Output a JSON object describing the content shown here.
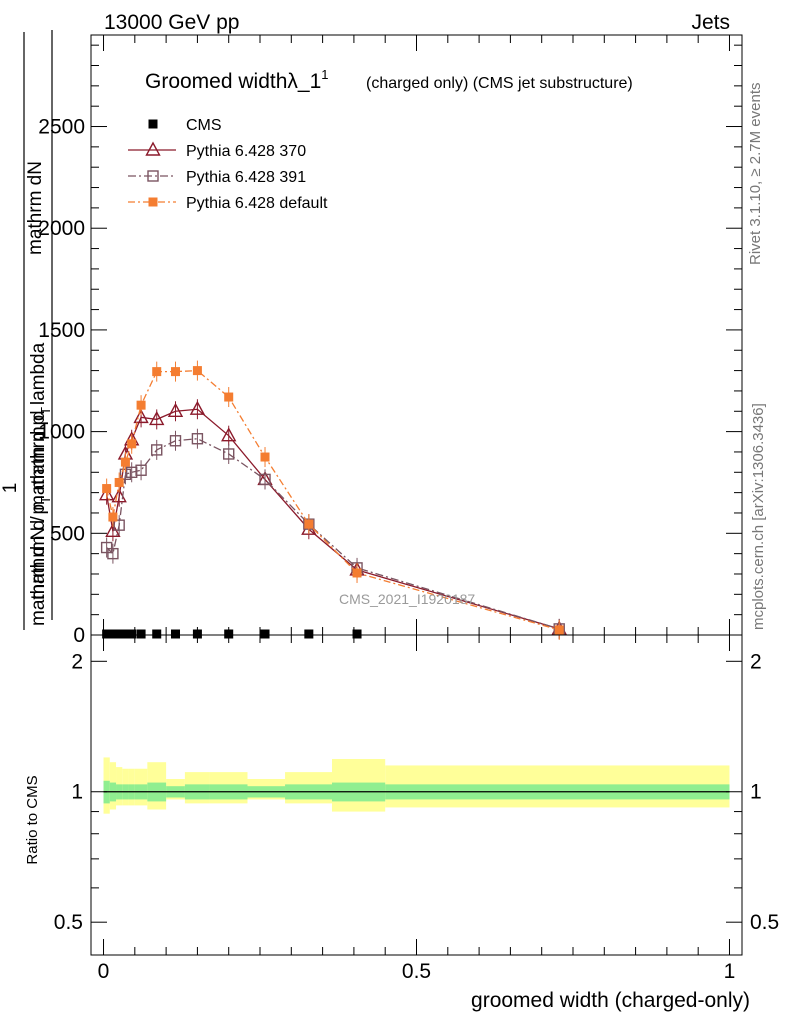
{
  "header": {
    "beam": "13000 GeV pp",
    "process": "Jets"
  },
  "side": {
    "rivet": "Rivet 3.1.10, ≥ 2.7M events",
    "mcplots": "mcplots.cern.ch [arXiv:1306.3436]"
  },
  "title": {
    "main": "Groomed width",
    "lambda": "λ_1",
    "sup": "1",
    "sub": "(charged only) (CMS jet substructure)"
  },
  "ylabel": {
    "num": "mathrm dN",
    "den_upper": "mathrm d p",
    "den_T": "T",
    "den_rest": "mathrm d p",
    "den_lambda": "mathrm d lambda",
    "one": "1",
    "lower": "mathrm d N / mathrm d p",
    "lower_T": "T"
  },
  "ratio_ylabel": "Ratio to CMS",
  "xlabel": "groomed width (charged-only)",
  "watermark": "CMS_2021_I1920187",
  "legend": [
    {
      "name": "CMS",
      "marker": "filled-square",
      "color": "#000000"
    },
    {
      "name": "Pythia 6.428 370",
      "marker": "open-triangle",
      "color": "#8b1a2b"
    },
    {
      "name": "Pythia 6.428 391",
      "marker": "open-square",
      "color": "#7a5461"
    },
    {
      "name": "Pythia 6.428 default",
      "marker": "filled-square",
      "color": "#f47d31"
    }
  ],
  "chart_data": {
    "type": "line",
    "xlim": [
      -0.02,
      1.02
    ],
    "ylim": [
      0,
      2950
    ],
    "ratio_ylim": [
      0.42,
      2.3
    ],
    "y_ticks": [
      0,
      500,
      1000,
      1500,
      2000,
      2500
    ],
    "y_tick_labels": [
      "0",
      "500",
      "1000",
      "1500",
      "2000",
      "2500"
    ],
    "x_ticks": [
      0,
      0.5,
      1
    ],
    "x_tick_labels": [
      "0",
      "0.5",
      "1"
    ],
    "ratio_ticks": [
      0.5,
      1,
      2
    ],
    "ratio_tick_labels": [
      "0.5",
      "1",
      "2"
    ],
    "series": [
      {
        "name": "CMS",
        "x": [
          0.005,
          0.015,
          0.025,
          0.035,
          0.045,
          0.06,
          0.085,
          0.115,
          0.15,
          0.2,
          0.258,
          0.328,
          0.405
        ],
        "values": [
          0,
          0,
          0,
          0,
          0,
          0,
          0,
          0,
          0,
          0,
          0,
          0,
          0
        ]
      },
      {
        "name": "Pythia 6.428 370",
        "x": [
          0.005,
          0.015,
          0.025,
          0.035,
          0.045,
          0.06,
          0.085,
          0.115,
          0.15,
          0.2,
          0.258,
          0.328,
          0.405,
          0.728
        ],
        "values": [
          690,
          510,
          680,
          890,
          960,
          1070,
          1060,
          1100,
          1110,
          980,
          765,
          520,
          320,
          30
        ]
      },
      {
        "name": "Pythia 6.428 391",
        "x": [
          0.005,
          0.015,
          0.025,
          0.035,
          0.045,
          0.06,
          0.085,
          0.115,
          0.15,
          0.2,
          0.258,
          0.328,
          0.405,
          0.728
        ],
        "values": [
          430,
          400,
          540,
          790,
          800,
          810,
          910,
          955,
          965,
          890,
          765,
          545,
          330,
          30
        ]
      },
      {
        "name": "Pythia 6.428 default",
        "x": [
          0.005,
          0.015,
          0.025,
          0.035,
          0.045,
          0.06,
          0.085,
          0.115,
          0.15,
          0.2,
          0.258,
          0.328,
          0.405,
          0.728
        ],
        "values": [
          720,
          580,
          750,
          850,
          940,
          1130,
          1295,
          1295,
          1300,
          1170,
          875,
          545,
          305,
          25
        ]
      }
    ],
    "ratio_bands": {
      "bins": [
        [
          0,
          0.01
        ],
        [
          0.01,
          0.02
        ],
        [
          0.02,
          0.03
        ],
        [
          0.03,
          0.04
        ],
        [
          0.04,
          0.05
        ],
        [
          0.05,
          0.07
        ],
        [
          0.07,
          0.1
        ],
        [
          0.1,
          0.13
        ],
        [
          0.13,
          0.17
        ],
        [
          0.17,
          0.23
        ],
        [
          0.23,
          0.29
        ],
        [
          0.29,
          0.365
        ],
        [
          0.365,
          0.45
        ],
        [
          0.45,
          1.0
        ]
      ],
      "inner": [
        [
          0.94,
          1.06
        ],
        [
          0.95,
          1.05
        ],
        [
          0.96,
          1.04
        ],
        [
          0.96,
          1.04
        ],
        [
          0.96,
          1.04
        ],
        [
          0.96,
          1.04
        ],
        [
          0.95,
          1.05
        ],
        [
          0.97,
          1.03
        ],
        [
          0.96,
          1.04
        ],
        [
          0.96,
          1.04
        ],
        [
          0.97,
          1.03
        ],
        [
          0.96,
          1.04
        ],
        [
          0.95,
          1.05
        ],
        [
          0.96,
          1.04
        ]
      ],
      "outer": [
        [
          0.89,
          1.2
        ],
        [
          0.91,
          1.17
        ],
        [
          0.93,
          1.14
        ],
        [
          0.93,
          1.13
        ],
        [
          0.93,
          1.13
        ],
        [
          0.93,
          1.13
        ],
        [
          0.91,
          1.17
        ],
        [
          0.96,
          1.07
        ],
        [
          0.94,
          1.11
        ],
        [
          0.94,
          1.11
        ],
        [
          0.96,
          1.07
        ],
        [
          0.94,
          1.11
        ],
        [
          0.9,
          1.19
        ],
        [
          0.92,
          1.15
        ]
      ]
    }
  }
}
